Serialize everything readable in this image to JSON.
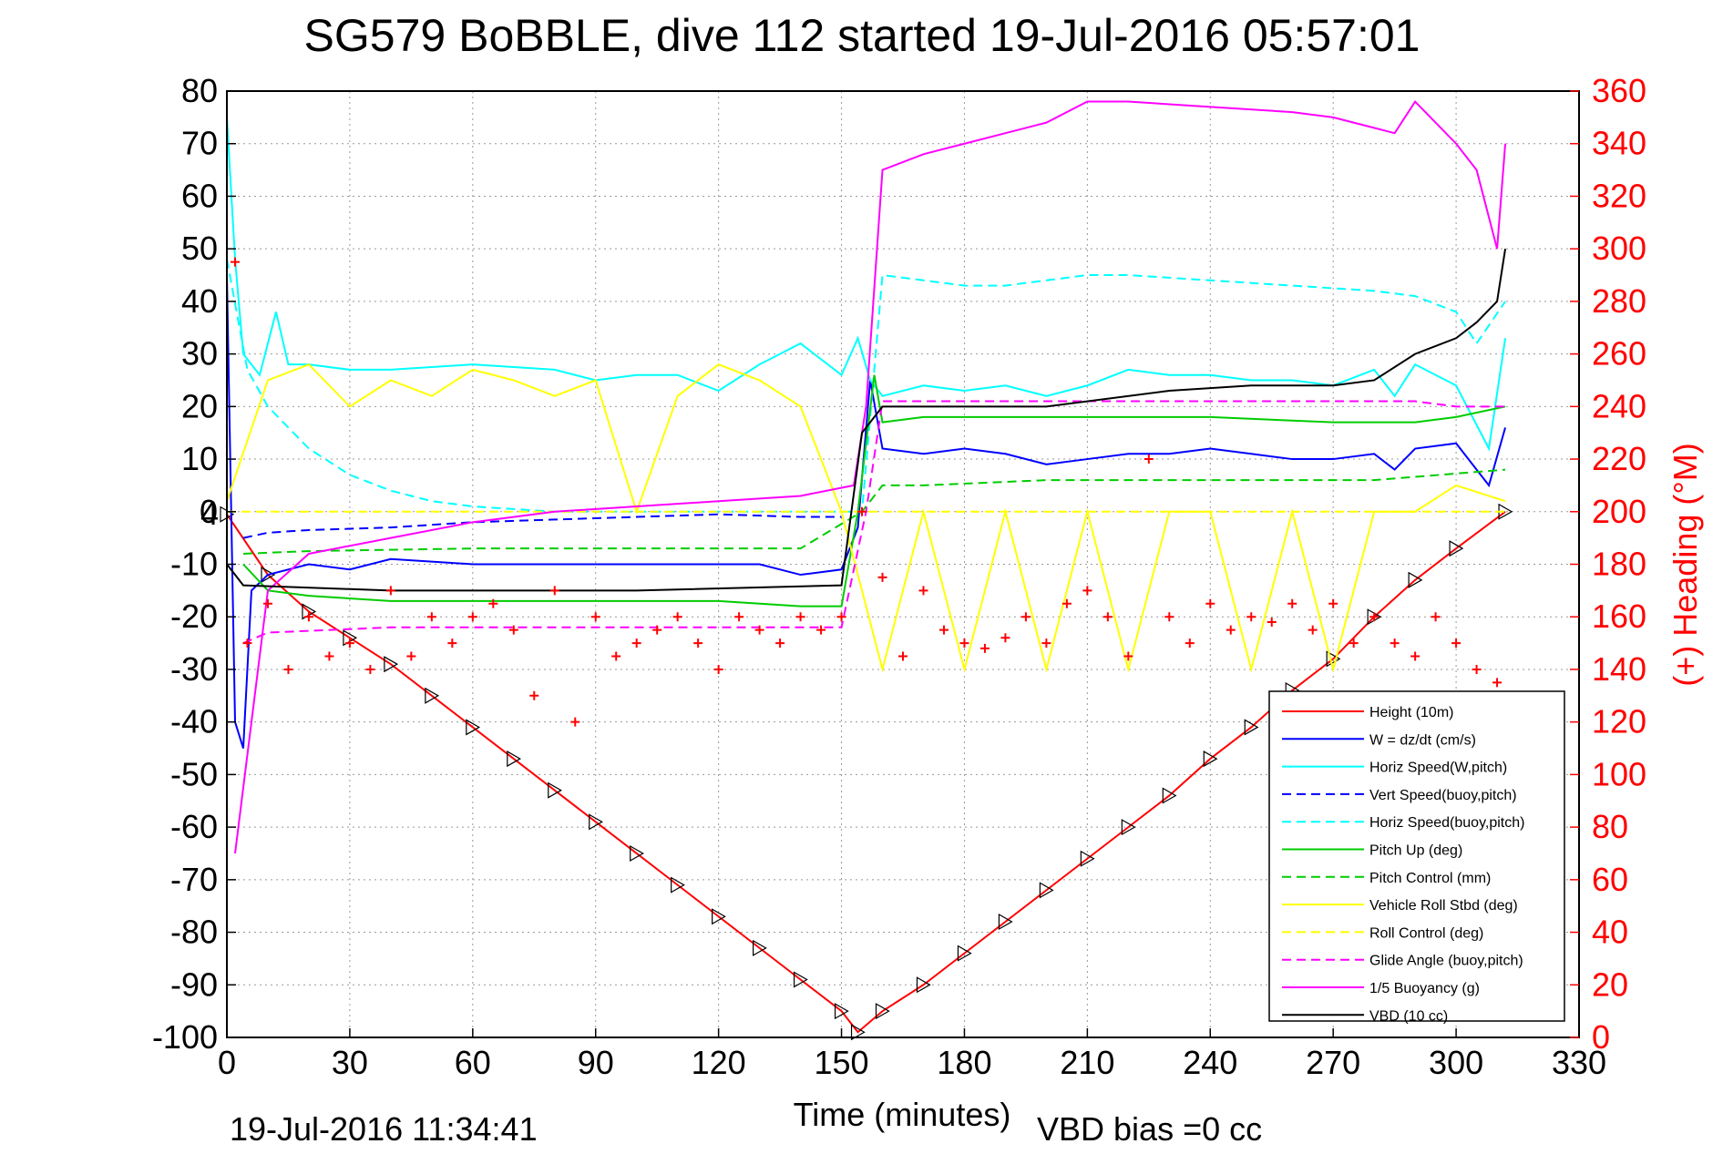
{
  "chart_data": {
    "type": "line",
    "title": "SG579 BoBBLE, dive 112 started 19-Jul-2016 05:57:01",
    "xlabel": "Time (minutes)",
    "ylabel_right": "(+) Heading (°M)",
    "xlim": [
      0,
      330
    ],
    "ylim_left": [
      -100,
      80
    ],
    "ylim_right": [
      0,
      360
    ],
    "x_ticks": [
      "0",
      "30",
      "60",
      "90",
      "120",
      "150",
      "180",
      "210",
      "240",
      "270",
      "300",
      "330"
    ],
    "y_ticks_left": [
      "80",
      "70",
      "60",
      "50",
      "40",
      "30",
      "20",
      "10",
      "0",
      "-10",
      "-20",
      "-30",
      "-40",
      "-50",
      "-60",
      "-70",
      "-80",
      "-90",
      "-100"
    ],
    "y_ticks_right": [
      "360",
      "340",
      "320",
      "300",
      "280",
      "260",
      "240",
      "220",
      "200",
      "180",
      "160",
      "140",
      "120",
      "100",
      "80",
      "60",
      "40",
      "20",
      "0"
    ],
    "grid": true,
    "legend_position": "bottom-right",
    "footer_left": "19-Jul-2016 11:34:41",
    "footer_right": "VBD bias =0 cc",
    "depth_marker_label": "4",
    "series": [
      {
        "name": "Height (10m)",
        "color": "#ff0000",
        "style": "solid",
        "markers": true,
        "x": [
          0,
          10,
          20,
          30,
          40,
          50,
          60,
          70,
          80,
          90,
          100,
          110,
          120,
          130,
          140,
          150,
          154,
          160,
          170,
          180,
          190,
          200,
          210,
          220,
          230,
          240,
          250,
          260,
          270,
          280,
          290,
          300,
          312
        ],
        "y": [
          -0.5,
          -12,
          -19,
          -24,
          -29,
          -35,
          -41,
          -47,
          -53,
          -59,
          -65,
          -71,
          -77,
          -83,
          -89,
          -95,
          -99,
          -95,
          -90,
          -84,
          -78,
          -72,
          -66,
          -60,
          -54,
          -47,
          -41,
          -34,
          -28,
          -20,
          -13,
          -7,
          0
        ]
      },
      {
        "name": "W = dz/dt (cm/s)",
        "color": "#0000ff",
        "style": "solid",
        "x": [
          0,
          2,
          4,
          6,
          10,
          20,
          30,
          40,
          60,
          80,
          100,
          120,
          130,
          140,
          150,
          154,
          157,
          160,
          170,
          180,
          190,
          200,
          210,
          220,
          230,
          240,
          250,
          260,
          270,
          280,
          285,
          290,
          300,
          308,
          312
        ],
        "y": [
          45,
          -40,
          -45,
          -15,
          -12,
          -10,
          -11,
          -9,
          -10,
          -10,
          -10,
          -10,
          -10,
          -12,
          -11,
          -3,
          25,
          12,
          11,
          12,
          11,
          9,
          10,
          11,
          11,
          12,
          11,
          10,
          10,
          11,
          8,
          12,
          13,
          5,
          16
        ]
      },
      {
        "name": "Horiz Speed(W,pitch)",
        "color": "#00ffff",
        "style": "solid",
        "x": [
          0,
          2,
          4,
          8,
          12,
          15,
          20,
          30,
          40,
          60,
          80,
          90,
          100,
          110,
          120,
          130,
          140,
          150,
          154,
          157,
          160,
          170,
          180,
          190,
          200,
          210,
          220,
          230,
          240,
          250,
          260,
          270,
          280,
          285,
          290,
          300,
          308,
          312
        ],
        "y": [
          75,
          48,
          30,
          26,
          38,
          28,
          28,
          27,
          27,
          28,
          27,
          25,
          26,
          26,
          23,
          28,
          32,
          26,
          33,
          25,
          22,
          24,
          23,
          24,
          22,
          24,
          27,
          26,
          26,
          25,
          25,
          24,
          27,
          22,
          28,
          24,
          12,
          33
        ]
      },
      {
        "name": "Vert Speed(buoy,pitch)",
        "color": "#0000ff",
        "style": "dashed",
        "x": [
          4,
          10,
          20,
          40,
          60,
          80,
          100,
          120,
          140,
          150
        ],
        "y": [
          -5,
          -4,
          -3.5,
          -3,
          -2,
          -1.5,
          -1,
          -0.5,
          -1,
          -1
        ]
      },
      {
        "name": "Horiz Speed(buoy,pitch)",
        "color": "#00ffff",
        "style": "dashed",
        "x": [
          0,
          5,
          10,
          20,
          30,
          40,
          50,
          60,
          70,
          80,
          155,
          160,
          170,
          180,
          190,
          200,
          210,
          220,
          240,
          260,
          280,
          290,
          300,
          305,
          312
        ],
        "y": [
          48,
          27,
          20,
          12,
          7,
          4,
          2,
          1,
          0.5,
          0,
          0,
          45,
          44,
          43,
          43,
          44,
          45,
          45,
          44,
          43,
          42,
          41,
          38,
          32,
          40
        ]
      },
      {
        "name": "Pitch Up (deg)",
        "color": "#00cc00",
        "style": "solid",
        "x": [
          4,
          10,
          20,
          40,
          60,
          80,
          100,
          120,
          140,
          150,
          154,
          158,
          160,
          170,
          200,
          210,
          240,
          270,
          290,
          300,
          312
        ],
        "y": [
          -10,
          -15,
          -16,
          -17,
          -17,
          -17,
          -17,
          -17,
          -18,
          -18,
          0,
          26,
          17,
          18,
          18,
          18,
          18,
          17,
          17,
          18,
          20
        ]
      },
      {
        "name": "Pitch Control (mm)",
        "color": "#00cc00",
        "style": "dashed",
        "x": [
          4,
          20,
          60,
          100,
          140,
          155,
          160,
          170,
          200,
          240,
          280,
          312
        ],
        "y": [
          -8,
          -7.5,
          -7,
          -7,
          -7,
          0,
          5,
          5,
          6,
          6,
          6,
          8
        ]
      },
      {
        "name": "Vehicle Roll Stbd (deg)",
        "color": "#ffff00",
        "style": "solid",
        "x": [
          0,
          10,
          20,
          30,
          40,
          50,
          60,
          70,
          80,
          90,
          100,
          110,
          120,
          130,
          140,
          150,
          160,
          170,
          180,
          190,
          200,
          210,
          220,
          230,
          240,
          250,
          260,
          270,
          280,
          290,
          300,
          312
        ],
        "y": [
          2,
          25,
          28,
          20,
          25,
          22,
          27,
          25,
          22,
          25,
          0,
          22,
          28,
          25,
          20,
          0,
          -30,
          0,
          -30,
          0,
          -30,
          0,
          -30,
          0,
          0,
          -30,
          0,
          -30,
          0,
          0,
          5,
          2
        ]
      },
      {
        "name": "Roll Control (deg)",
        "color": "#ffff00",
        "style": "dashed",
        "x": [
          0,
          150,
          155,
          312
        ],
        "y": [
          0,
          0,
          0,
          0
        ]
      },
      {
        "name": "Glide Angle (buoy,pitch)",
        "color": "#ff00ff",
        "style": "dashed",
        "x": [
          4,
          10,
          40,
          80,
          120,
          150,
          156,
          160,
          200,
          250,
          290,
          300,
          312
        ],
        "y": [
          -25,
          -23,
          -22,
          -22,
          -22,
          -22,
          0,
          21,
          21,
          21,
          21,
          20,
          20
        ]
      },
      {
        "name": "1/5 Buoyancy (g)",
        "color": "#ff00ff",
        "style": "solid",
        "x": [
          2,
          10,
          20,
          40,
          60,
          80,
          100,
          120,
          140,
          153,
          156,
          160,
          170,
          180,
          190,
          200,
          210,
          220,
          240,
          260,
          270,
          280,
          285,
          290,
          300,
          305,
          310,
          312
        ],
        "y": [
          -65,
          -15,
          -8,
          -5,
          -2,
          0,
          1,
          2,
          3,
          5,
          20,
          65,
          68,
          70,
          72,
          74,
          78,
          78,
          77,
          76,
          75,
          73,
          72,
          78,
          70,
          65,
          50,
          70
        ]
      },
      {
        "name": "VBD (10 cc)",
        "color": "#000000",
        "style": "solid",
        "x": [
          0,
          4,
          40,
          100,
          150,
          155,
          160,
          180,
          200,
          230,
          250,
          270,
          280,
          290,
          300,
          305,
          310,
          312
        ],
        "y": [
          -10,
          -14,
          -15,
          -15,
          -14,
          15,
          20,
          20,
          20,
          23,
          24,
          24,
          25,
          30,
          33,
          36,
          40,
          50
        ]
      },
      {
        "name": "Heading",
        "axis": "right",
        "color": "#ff0000",
        "style": "markers",
        "x": [
          2,
          5,
          10,
          15,
          20,
          25,
          30,
          35,
          40,
          45,
          50,
          55,
          60,
          65,
          70,
          75,
          80,
          85,
          90,
          95,
          100,
          105,
          110,
          115,
          120,
          125,
          130,
          135,
          140,
          145,
          150,
          155,
          160,
          165,
          170,
          175,
          180,
          185,
          190,
          195,
          200,
          205,
          210,
          215,
          220,
          225,
          230,
          235,
          240,
          245,
          250,
          255,
          260,
          265,
          270,
          275,
          280,
          285,
          290,
          295,
          300,
          305,
          310
        ],
        "y": [
          295,
          150,
          165,
          140,
          160,
          145,
          150,
          140,
          170,
          145,
          160,
          150,
          160,
          165,
          155,
          130,
          170,
          120,
          160,
          145,
          150,
          155,
          160,
          150,
          140,
          160,
          155,
          150,
          160,
          155,
          160,
          200,
          175,
          145,
          170,
          155,
          150,
          148,
          152,
          160,
          150,
          165,
          170,
          160,
          145,
          220,
          160,
          150,
          165,
          155,
          160,
          158,
          165,
          155,
          165,
          150,
          160,
          150,
          145,
          160,
          150,
          140,
          135
        ]
      }
    ]
  }
}
